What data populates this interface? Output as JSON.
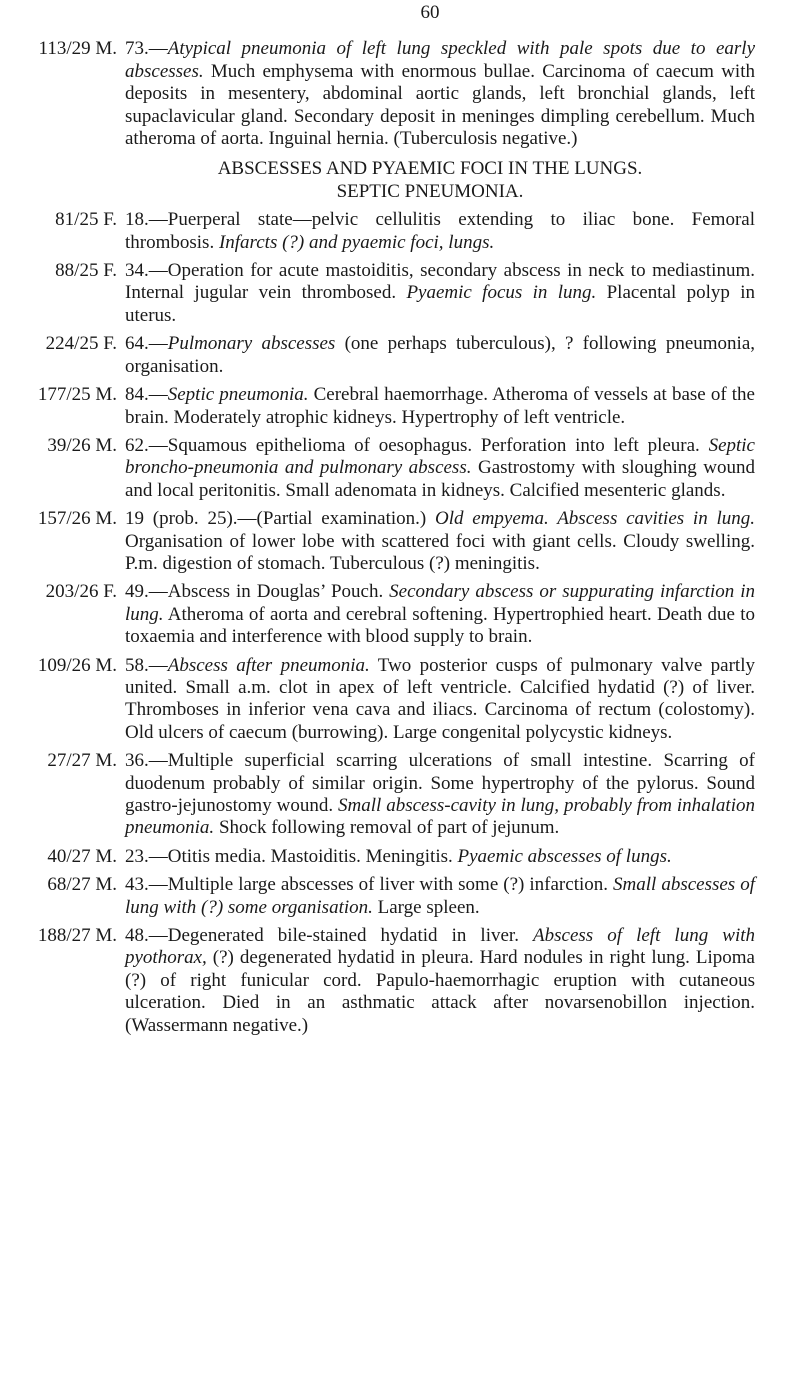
{
  "page_number": "60",
  "first_entry": {
    "label": "113/29 M.",
    "segments": [
      {
        "text": "73.—",
        "italic": false
      },
      {
        "text": "Atypical pneumonia of left lung speckled with pale spots due to early abscesses.",
        "italic": true
      },
      {
        "text": " Much emphysema with enormous bullae. Carcinoma of caecum with deposits in mesentery, abdominal aortic glands, left bronchial glands, left supaclavicular gland. Secondary deposit in meninges dimpling cerebellum. Much atheroma of aorta. Inguinal hernia. (Tuberculosis negative.)",
        "italic": false
      }
    ]
  },
  "heading": "ABSCESSES AND PYAEMIC FOCI IN THE LUNGS.",
  "subheading": "SEPTIC PNEUMONIA.",
  "entries": [
    {
      "label": "81/25 F.",
      "segments": [
        {
          "text": "18.—Puerperal state—pelvic cellulitis extending to iliac bone. Femoral thrombosis. ",
          "italic": false
        },
        {
          "text": "Infarcts (?) and pyaemic foci, lungs.",
          "italic": true
        }
      ]
    },
    {
      "label": "88/25 F.",
      "segments": [
        {
          "text": "34.—Operation for acute mastoiditis, secondary abscess in neck to mediastinum. Internal jugular vein thrombosed. ",
          "italic": false
        },
        {
          "text": "Pyaemic focus in lung.",
          "italic": true
        },
        {
          "text": " Placental polyp in uterus.",
          "italic": false
        }
      ]
    },
    {
      "label": "224/25 F.",
      "segments": [
        {
          "text": "64.—",
          "italic": false
        },
        {
          "text": "Pulmonary abscesses",
          "italic": true
        },
        {
          "text": " (one perhaps tuberculous), ? following pneumonia, organisation.",
          "italic": false
        }
      ]
    },
    {
      "label": "177/25 M.",
      "segments": [
        {
          "text": "84.—",
          "italic": false
        },
        {
          "text": "Septic pneumonia.",
          "italic": true
        },
        {
          "text": " Cerebral haemorrhage. Atheroma of vessels at base of the brain. Moderately atrophic kid­neys. Hypertrophy of left ventricle.",
          "italic": false
        }
      ]
    },
    {
      "label": "39/26 M.",
      "segments": [
        {
          "text": "62.—Squamous epithelioma of oesophagus. Perforation into left pleura. ",
          "italic": false
        },
        {
          "text": "Septic broncho-pneumonia and pulmonary abscess.",
          "italic": true
        },
        {
          "text": " Gastrostomy with sloughing wound and local peritonitis. Small adenomata in kidneys. Calcified mesenteric glands.",
          "italic": false
        }
      ]
    },
    {
      "label": "157/26 M.",
      "segments": [
        {
          "text": "19 (prob. 25).—(Partial examination.) ",
          "italic": false
        },
        {
          "text": "Old empyema. Abscess cavities in lung.",
          "italic": true
        },
        {
          "text": " Organisation of lower lobe with scattered foci with giant cells. Cloudy swelling. P.m. digestion of stomach. Tuberculous (?) meningitis.",
          "italic": false
        }
      ]
    },
    {
      "label": "203/26 F.",
      "segments": [
        {
          "text": "49.—Abscess in Douglas’ Pouch. ",
          "italic": false
        },
        {
          "text": "Secondary abscess or suppurating infarction in lung.",
          "italic": true
        },
        {
          "text": " Atheroma of aorta and cerebral softening. Hypertrophied heart. Death due to toxaemia and interference with blood supply to brain.",
          "italic": false
        }
      ]
    },
    {
      "label": "109/26 M.",
      "segments": [
        {
          "text": "58.—",
          "italic": false
        },
        {
          "text": "Abscess after pneumonia.",
          "italic": true
        },
        {
          "text": " Two posterior cusps of pul­monary valve partly united. Small a.m. clot in apex of left ventricle. Calcified hydatid (?) of liver. Thromboses in inferior vena cava and iliacs. Carcinoma of rectum (colostomy). Old ulcers of caecum (burrowing). Large congenital polycystic kidneys.",
          "italic": false
        }
      ]
    },
    {
      "label": "27/27 M.",
      "segments": [
        {
          "text": "36.—Multiple superficial scarring ulcerations of small intestine. Scarring of duodenum probably of similar origin. Some hypertrophy of the pylorus. Sound gastro-jejunostomy wound. ",
          "italic": false
        },
        {
          "text": "Small abscess-cavity in lung, probably from inhalation pneumonia.",
          "italic": true
        },
        {
          "text": " Shock following removal of part of jejunum.",
          "italic": false
        }
      ]
    },
    {
      "label": "40/27 M.",
      "segments": [
        {
          "text": "23.—Otitis media. Mastoiditis. Meningitis. ",
          "italic": false
        },
        {
          "text": "Pyaemic abscesses of lungs.",
          "italic": true
        }
      ]
    },
    {
      "label": "68/27 M.",
      "segments": [
        {
          "text": "43.—Multiple large abscesses of liver with some (?) infarction. ",
          "italic": false
        },
        {
          "text": "Small abscesses of lung with (?) some organisation.",
          "italic": true
        },
        {
          "text": " Large spleen.",
          "italic": false
        }
      ]
    },
    {
      "label": "188/27 M.",
      "segments": [
        {
          "text": "48.—Degenerated bile-stained hydatid in liver. ",
          "italic": false
        },
        {
          "text": "Abscess of left lung with pyothorax,",
          "italic": true
        },
        {
          "text": " (?) degenerated hydatid in pleura. Hard nodules in right lung. Lipoma (?) of right funicular cord. Papulo-haemorrhagic eruption with cutaneous ulceration. Died in an asthmatic attack after novarsenobillon injection. (Wassermann negative.)",
          "italic": false
        }
      ]
    }
  ]
}
